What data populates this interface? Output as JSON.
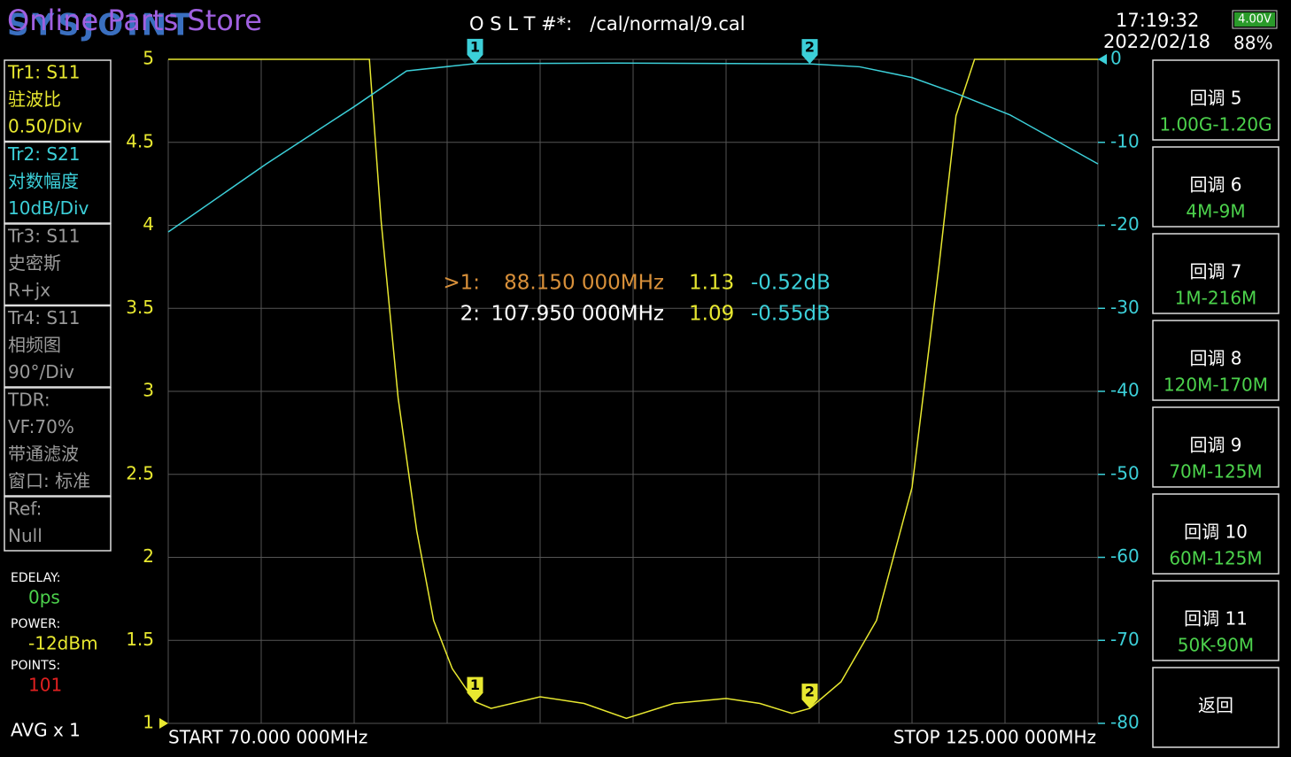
{
  "header": {
    "brand": "SYSJOINT",
    "watermark": "Online Parts Store",
    "cal": "O S L T #*:   /cal/normal/9.cal",
    "time": "17:19:32",
    "date": "2022/02/18",
    "battery_voltage": "4.00V",
    "battery_percent": "88%"
  },
  "traces": [
    {
      "lines": [
        "Tr1:   S11",
        "驻波比",
        "0.50/Div"
      ],
      "color": "#e8e830"
    },
    {
      "lines": [
        "Tr2:   S21",
        "对数幅度",
        "10dB/Div"
      ],
      "color": "#3ccfd8"
    },
    {
      "lines": [
        "Tr3:   S11",
        "史密斯",
        "R+jx"
      ],
      "color": "#9a9a9a"
    },
    {
      "lines": [
        "Tr4:   S11",
        "相频图",
        "90°/Div"
      ],
      "color": "#9a9a9a"
    },
    {
      "lines": [
        "TDR:",
        "VF:70%",
        "带通滤波",
        "窗口: 标准"
      ],
      "color": "#9a9a9a"
    },
    {
      "lines": [
        "Ref:",
        "Null"
      ],
      "color": "#9a9a9a"
    }
  ],
  "status": {
    "edelay_label": "EDELAY:",
    "edelay": "0ps",
    "power_label": "POWER:",
    "power": "-12dBm",
    "points_label": "POINTS:",
    "points": "101",
    "avg": "AVG x 1"
  },
  "menu": [
    {
      "title": "回调 5",
      "range": "1.00G-1.20G"
    },
    {
      "title": "回调 6",
      "range": "4M-9M"
    },
    {
      "title": "回调 7",
      "range": "1M-216M"
    },
    {
      "title": "回调 8",
      "range": "120M-170M"
    },
    {
      "title": "回调 9",
      "range": "70M-125M"
    },
    {
      "title": "回调 10",
      "range": "60M-125M"
    },
    {
      "title": "回调 11",
      "range": "50K-90M"
    },
    {
      "title": "返回"
    }
  ],
  "chart_data": {
    "type": "line",
    "xlim": [
      70,
      125
    ],
    "ylim": [
      1,
      5
    ],
    "yticks": [
      1,
      1.5,
      2,
      2.5,
      3,
      3.5,
      4,
      4.5,
      5
    ],
    "y2lim": [
      -80,
      0
    ],
    "y2ticks": [
      0,
      -10,
      -20,
      -30,
      -40,
      -50,
      -60,
      -70,
      -80
    ],
    "start_label": "START   70.000 000MHz",
    "stop_label": "STOP  125.000 000MHz",
    "series": [
      {
        "name": "S11",
        "color": "#e8e830",
        "axis": "y",
        "x": [
          70,
          81.9,
          82.6,
          83.6,
          84.7,
          85.7,
          86.8,
          88.15,
          89.1,
          92,
          94.6,
          97.1,
          99.9,
          103,
          105,
          106.9,
          107.95,
          109.8,
          111.9,
          114,
          115.6,
          116.6,
          117.7,
          125
        ],
        "values": [
          5,
          5,
          4.02,
          2.96,
          2.16,
          1.62,
          1.33,
          1.13,
          1.09,
          1.16,
          1.12,
          1.03,
          1.12,
          1.15,
          1.12,
          1.06,
          1.09,
          1.25,
          1.62,
          2.42,
          3.76,
          4.66,
          5,
          5
        ]
      },
      {
        "name": "S21",
        "color": "#3ccfd8",
        "axis": "y2",
        "x": [
          70,
          75.8,
          81,
          84.1,
          88.15,
          96.7,
          107.95,
          110.9,
          114,
          116.6,
          119.8,
          125
        ],
        "values": [
          -20.8,
          -12.6,
          -5.7,
          -1.4,
          -0.52,
          -0.45,
          -0.55,
          -0.9,
          -2.2,
          -4.1,
          -6.7,
          -12.6
        ]
      }
    ],
    "markers": [
      {
        "label": "1",
        "x": 88.15
      },
      {
        "label": "2",
        "x": 107.95
      }
    ],
    "readouts": [
      {
        "id": ">1:",
        "freq": "88.150 000MHz",
        "swr": "1.13",
        "db": "-0.52dB"
      },
      {
        "id": "2:",
        "freq": "107.950 000MHz",
        "swr": "1.09",
        "db": "-0.55dB"
      }
    ]
  }
}
